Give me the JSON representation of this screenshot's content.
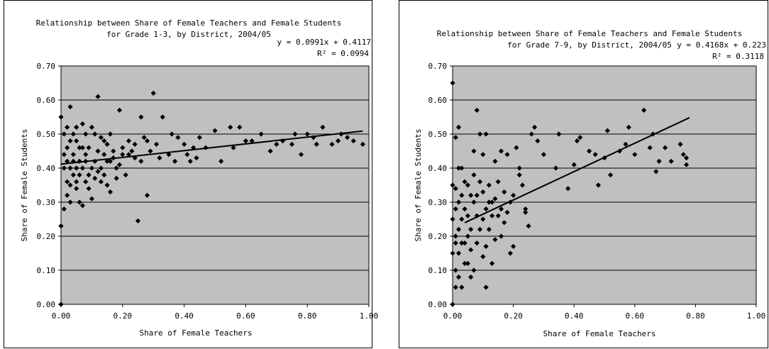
{
  "colors": {
    "plot_bg": "#c0c0c0",
    "marker": "#000000",
    "grid": "#000000",
    "frame": "#000000"
  },
  "chart_data": [
    {
      "type": "scatter",
      "title": "Relationship between Share of Female Teachers and Female Students",
      "subtitle": "for Grade 1-3, by District, 2004/05",
      "equation": "y = 0.0991x + 0.4117",
      "r2": "R² = 0.0994",
      "xlabel": "Share of Female Teachers",
      "ylabel": "Share of Female Students",
      "xlim": [
        0,
        1
      ],
      "ylim": [
        0,
        0.7
      ],
      "xticks": [
        "0.00",
        "0.20",
        "0.40",
        "0.60",
        "0.80",
        "1.00"
      ],
      "yticks": [
        "0.00",
        "0.10",
        "0.20",
        "0.30",
        "0.40",
        "0.50",
        "0.60",
        "0.70"
      ],
      "grid": "horizontal",
      "marker": "diamond",
      "trend": {
        "slope": 0.0991,
        "intercept": 0.4117,
        "x_range": [
          0,
          0.98
        ]
      },
      "points": [
        [
          0.0,
          0.0
        ],
        [
          0.0,
          0.23
        ],
        [
          0.0,
          0.55
        ],
        [
          0.01,
          0.28
        ],
        [
          0.02,
          0.32
        ],
        [
          0.02,
          0.46
        ],
        [
          0.03,
          0.35
        ],
        [
          0.01,
          0.44
        ],
        [
          0.01,
          0.4
        ],
        [
          0.03,
          0.58
        ],
        [
          0.02,
          0.52
        ],
        [
          0.04,
          0.5
        ],
        [
          0.05,
          0.36
        ],
        [
          0.06,
          0.3
        ],
        [
          0.05,
          0.34
        ],
        [
          0.07,
          0.29
        ],
        [
          0.08,
          0.44
        ],
        [
          0.09,
          0.38
        ],
        [
          0.1,
          0.4
        ],
        [
          0.11,
          0.42
        ],
        [
          0.12,
          0.61
        ],
        [
          0.13,
          0.36
        ],
        [
          0.14,
          0.44
        ],
        [
          0.15,
          0.47
        ],
        [
          0.16,
          0.33
        ],
        [
          0.17,
          0.45
        ],
        [
          0.18,
          0.4
        ],
        [
          0.19,
          0.57
        ],
        [
          0.2,
          0.46
        ],
        [
          0.22,
          0.48
        ],
        [
          0.24,
          0.47
        ],
        [
          0.25,
          0.245
        ],
        [
          0.26,
          0.55
        ],
        [
          0.28,
          0.32
        ],
        [
          0.3,
          0.62
        ],
        [
          0.33,
          0.55
        ],
        [
          0.35,
          0.44
        ],
        [
          0.38,
          0.49
        ],
        [
          0.4,
          0.47
        ],
        [
          0.42,
          0.42
        ],
        [
          0.45,
          0.49
        ],
        [
          0.5,
          0.51
        ],
        [
          0.52,
          0.42
        ],
        [
          0.55,
          0.52
        ],
        [
          0.58,
          0.52
        ],
        [
          0.62,
          0.48
        ],
        [
          0.68,
          0.45
        ],
        [
          0.72,
          0.48
        ],
        [
          0.75,
          0.47
        ],
        [
          0.78,
          0.44
        ],
        [
          0.8,
          0.5
        ],
        [
          0.82,
          0.49
        ],
        [
          0.85,
          0.52
        ],
        [
          0.88,
          0.47
        ],
        [
          0.9,
          0.48
        ],
        [
          0.93,
          0.49
        ],
        [
          0.95,
          0.48
        ],
        [
          0.98,
          0.47
        ],
        [
          0.03,
          0.4
        ],
        [
          0.04,
          0.44
        ],
        [
          0.05,
          0.48
        ],
        [
          0.06,
          0.42
        ],
        [
          0.07,
          0.46
        ],
        [
          0.08,
          0.5
        ],
        [
          0.09,
          0.34
        ],
        [
          0.1,
          0.52
        ],
        [
          0.11,
          0.37
        ],
        [
          0.12,
          0.45
        ],
        [
          0.13,
          0.49
        ],
        [
          0.14,
          0.38
        ],
        [
          0.15,
          0.42
        ],
        [
          0.16,
          0.5
        ],
        [
          0.17,
          0.43
        ],
        [
          0.18,
          0.37
        ],
        [
          0.2,
          0.44
        ],
        [
          0.21,
          0.38
        ],
        [
          0.23,
          0.45
        ],
        [
          0.27,
          0.49
        ],
        [
          0.29,
          0.45
        ],
        [
          0.31,
          0.47
        ],
        [
          0.36,
          0.5
        ],
        [
          0.43,
          0.46
        ],
        [
          0.47,
          0.46
        ],
        [
          0.56,
          0.46
        ],
        [
          0.6,
          0.48
        ],
        [
          0.65,
          0.5
        ],
        [
          0.7,
          0.47
        ],
        [
          0.76,
          0.5
        ],
        [
          0.83,
          0.47
        ],
        [
          0.91,
          0.5
        ],
        [
          0.02,
          0.36
        ],
        [
          0.03,
          0.3
        ],
        [
          0.04,
          0.42
        ],
        [
          0.05,
          0.52
        ],
        [
          0.06,
          0.38
        ],
        [
          0.07,
          0.53
        ],
        [
          0.08,
          0.36
        ],
        [
          0.09,
          0.46
        ],
        [
          0.1,
          0.31
        ],
        [
          0.11,
          0.5
        ],
        [
          0.01,
          0.5
        ],
        [
          0.02,
          0.42
        ],
        [
          0.03,
          0.48
        ],
        [
          0.04,
          0.38
        ],
        [
          0.05,
          0.4
        ],
        [
          0.06,
          0.46
        ],
        [
          0.07,
          0.4
        ],
        [
          0.08,
          0.42
        ],
        [
          0.12,
          0.39
        ],
        [
          0.13,
          0.4
        ],
        [
          0.14,
          0.48
        ],
        [
          0.15,
          0.35
        ],
        [
          0.16,
          0.42
        ],
        [
          0.19,
          0.41
        ],
        [
          0.22,
          0.44
        ],
        [
          0.24,
          0.43
        ],
        [
          0.26,
          0.42
        ],
        [
          0.28,
          0.48
        ],
        [
          0.32,
          0.43
        ],
        [
          0.37,
          0.42
        ],
        [
          0.41,
          0.44
        ],
        [
          0.44,
          0.43
        ]
      ]
    },
    {
      "type": "scatter",
      "title": "Relationship between Share of Female Teachers and Female Students",
      "subtitle": "for Grade 7-9, by District, 2004/05",
      "equation": "y = 0.4168x + 0.223",
      "r2": "R² = 0.3118",
      "xlabel": "Share of Female Teachers",
      "ylabel": "Share of Female Students",
      "xlim": [
        0,
        1
      ],
      "ylim": [
        0,
        0.7
      ],
      "xticks": [
        "0.00",
        "0.20",
        "0.40",
        "0.60",
        "0.80",
        "1.00"
      ],
      "yticks": [
        "0.00",
        "0.10",
        "0.20",
        "0.30",
        "0.40",
        "0.50",
        "0.60",
        "0.70"
      ],
      "grid": "horizontal",
      "marker": "diamond",
      "trend": {
        "slope": 0.4168,
        "intercept": 0.223,
        "x_range": [
          0.04,
          0.78
        ]
      },
      "points": [
        [
          0.0,
          0.0
        ],
        [
          0.0,
          0.65
        ],
        [
          0.01,
          0.05
        ],
        [
          0.01,
          0.1
        ],
        [
          0.01,
          0.2
        ],
        [
          0.02,
          0.3
        ],
        [
          0.01,
          0.49
        ],
        [
          0.02,
          0.52
        ],
        [
          0.03,
          0.4
        ],
        [
          0.03,
          0.25
        ],
        [
          0.04,
          0.18
        ],
        [
          0.05,
          0.35
        ],
        [
          0.05,
          0.12
        ],
        [
          0.06,
          0.22
        ],
        [
          0.07,
          0.45
        ],
        [
          0.07,
          0.3
        ],
        [
          0.08,
          0.57
        ],
        [
          0.08,
          0.18
        ],
        [
          0.09,
          0.5
        ],
        [
          0.1,
          0.25
        ],
        [
          0.1,
          0.44
        ],
        [
          0.11,
          0.05
        ],
        [
          0.11,
          0.5
        ],
        [
          0.12,
          0.35
        ],
        [
          0.13,
          0.12
        ],
        [
          0.14,
          0.42
        ],
        [
          0.15,
          0.26
        ],
        [
          0.16,
          0.45
        ],
        [
          0.17,
          0.33
        ],
        [
          0.18,
          0.44
        ],
        [
          0.19,
          0.15
        ],
        [
          0.2,
          0.17
        ],
        [
          0.21,
          0.46
        ],
        [
          0.22,
          0.4
        ],
        [
          0.23,
          0.35
        ],
        [
          0.24,
          0.27
        ],
        [
          0.25,
          0.23
        ],
        [
          0.26,
          0.5
        ],
        [
          0.27,
          0.52
        ],
        [
          0.28,
          0.48
        ],
        [
          0.3,
          0.44
        ],
        [
          0.34,
          0.4
        ],
        [
          0.35,
          0.5
        ],
        [
          0.38,
          0.34
        ],
        [
          0.4,
          0.41
        ],
        [
          0.41,
          0.48
        ],
        [
          0.42,
          0.49
        ],
        [
          0.45,
          0.45
        ],
        [
          0.47,
          0.44
        ],
        [
          0.48,
          0.35
        ],
        [
          0.5,
          0.43
        ],
        [
          0.51,
          0.51
        ],
        [
          0.52,
          0.38
        ],
        [
          0.55,
          0.45
        ],
        [
          0.57,
          0.47
        ],
        [
          0.58,
          0.52
        ],
        [
          0.6,
          0.44
        ],
        [
          0.63,
          0.57
        ],
        [
          0.65,
          0.46
        ],
        [
          0.66,
          0.5
        ],
        [
          0.67,
          0.39
        ],
        [
          0.68,
          0.42
        ],
        [
          0.7,
          0.46
        ],
        [
          0.72,
          0.42
        ],
        [
          0.75,
          0.47
        ],
        [
          0.76,
          0.44
        ],
        [
          0.77,
          0.41
        ],
        [
          0.77,
          0.43
        ],
        [
          0.02,
          0.15
        ],
        [
          0.03,
          0.05
        ],
        [
          0.04,
          0.28
        ],
        [
          0.05,
          0.2
        ],
        [
          0.06,
          0.32
        ],
        [
          0.06,
          0.16
        ],
        [
          0.07,
          0.1
        ],
        [
          0.08,
          0.26
        ],
        [
          0.09,
          0.36
        ],
        [
          0.1,
          0.14
        ],
        [
          0.11,
          0.28
        ],
        [
          0.12,
          0.22
        ],
        [
          0.13,
          0.3
        ],
        [
          0.14,
          0.19
        ],
        [
          0.15,
          0.36
        ],
        [
          0.16,
          0.28
        ],
        [
          0.17,
          0.24
        ],
        [
          0.18,
          0.27
        ],
        [
          0.19,
          0.3
        ],
        [
          0.2,
          0.32
        ],
        [
          0.22,
          0.38
        ],
        [
          0.24,
          0.28
        ],
        [
          0.01,
          0.34
        ],
        [
          0.02,
          0.4
        ],
        [
          0.02,
          0.22
        ],
        [
          0.03,
          0.18
        ],
        [
          0.04,
          0.12
        ],
        [
          0.04,
          0.36
        ],
        [
          0.05,
          0.26
        ],
        [
          0.06,
          0.08
        ],
        [
          0.07,
          0.38
        ],
        [
          0.08,
          0.32
        ],
        [
          0.09,
          0.22
        ],
        [
          0.1,
          0.33
        ],
        [
          0.11,
          0.17
        ],
        [
          0.12,
          0.3
        ],
        [
          0.13,
          0.26
        ],
        [
          0.14,
          0.31
        ],
        [
          0.16,
          0.2
        ],
        [
          0.0,
          0.15
        ],
        [
          0.0,
          0.25
        ],
        [
          0.0,
          0.35
        ],
        [
          0.01,
          0.28
        ],
        [
          0.01,
          0.18
        ],
        [
          0.02,
          0.08
        ],
        [
          0.03,
          0.32
        ]
      ]
    }
  ]
}
